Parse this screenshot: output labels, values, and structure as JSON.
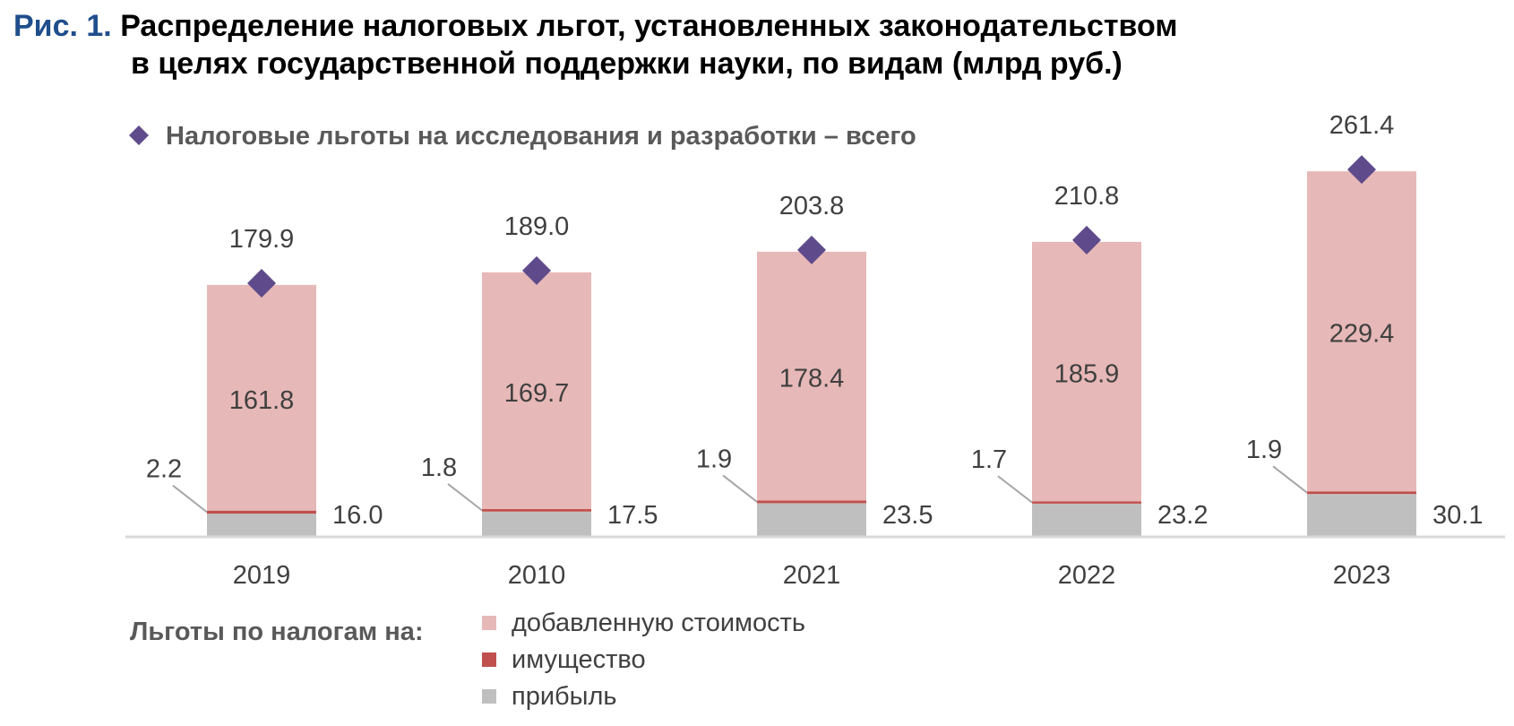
{
  "figure": {
    "number": "Рис. 1.",
    "title_line1": "Распределение налоговых льгот, установленных законодательством",
    "title_line2": "в целях государственной поддержки науки, по видам (млрд руб.)"
  },
  "colors": {
    "vat": "#e6b8b7",
    "property": "#c0504d",
    "profit": "#bfbfbf",
    "total_marker": "#5f4b8b",
    "figure_number": "#1f4e8c"
  },
  "chart_data": {
    "type": "bar",
    "stacked": true,
    "categories": [
      "2019",
      "2010",
      "2021",
      "2022",
      "2023"
    ],
    "series": [
      {
        "name": "прибыль",
        "values": [
          16.0,
          17.5,
          23.5,
          23.2,
          30.1
        ]
      },
      {
        "name": "имущество",
        "values": [
          2.2,
          1.8,
          1.9,
          1.7,
          1.9
        ]
      },
      {
        "name": "добавленную стоимость",
        "values": [
          161.8,
          169.7,
          178.4,
          185.9,
          229.4
        ]
      }
    ],
    "total": {
      "name": "Налоговые льготы на исследования и разработки – всего",
      "values": [
        179.9,
        189.0,
        203.8,
        210.8,
        261.4
      ]
    },
    "legend_title": "Льготы по налогам на:",
    "ylim": [
      0,
      275
    ],
    "grid": false,
    "legend_position": "bottom-left"
  }
}
